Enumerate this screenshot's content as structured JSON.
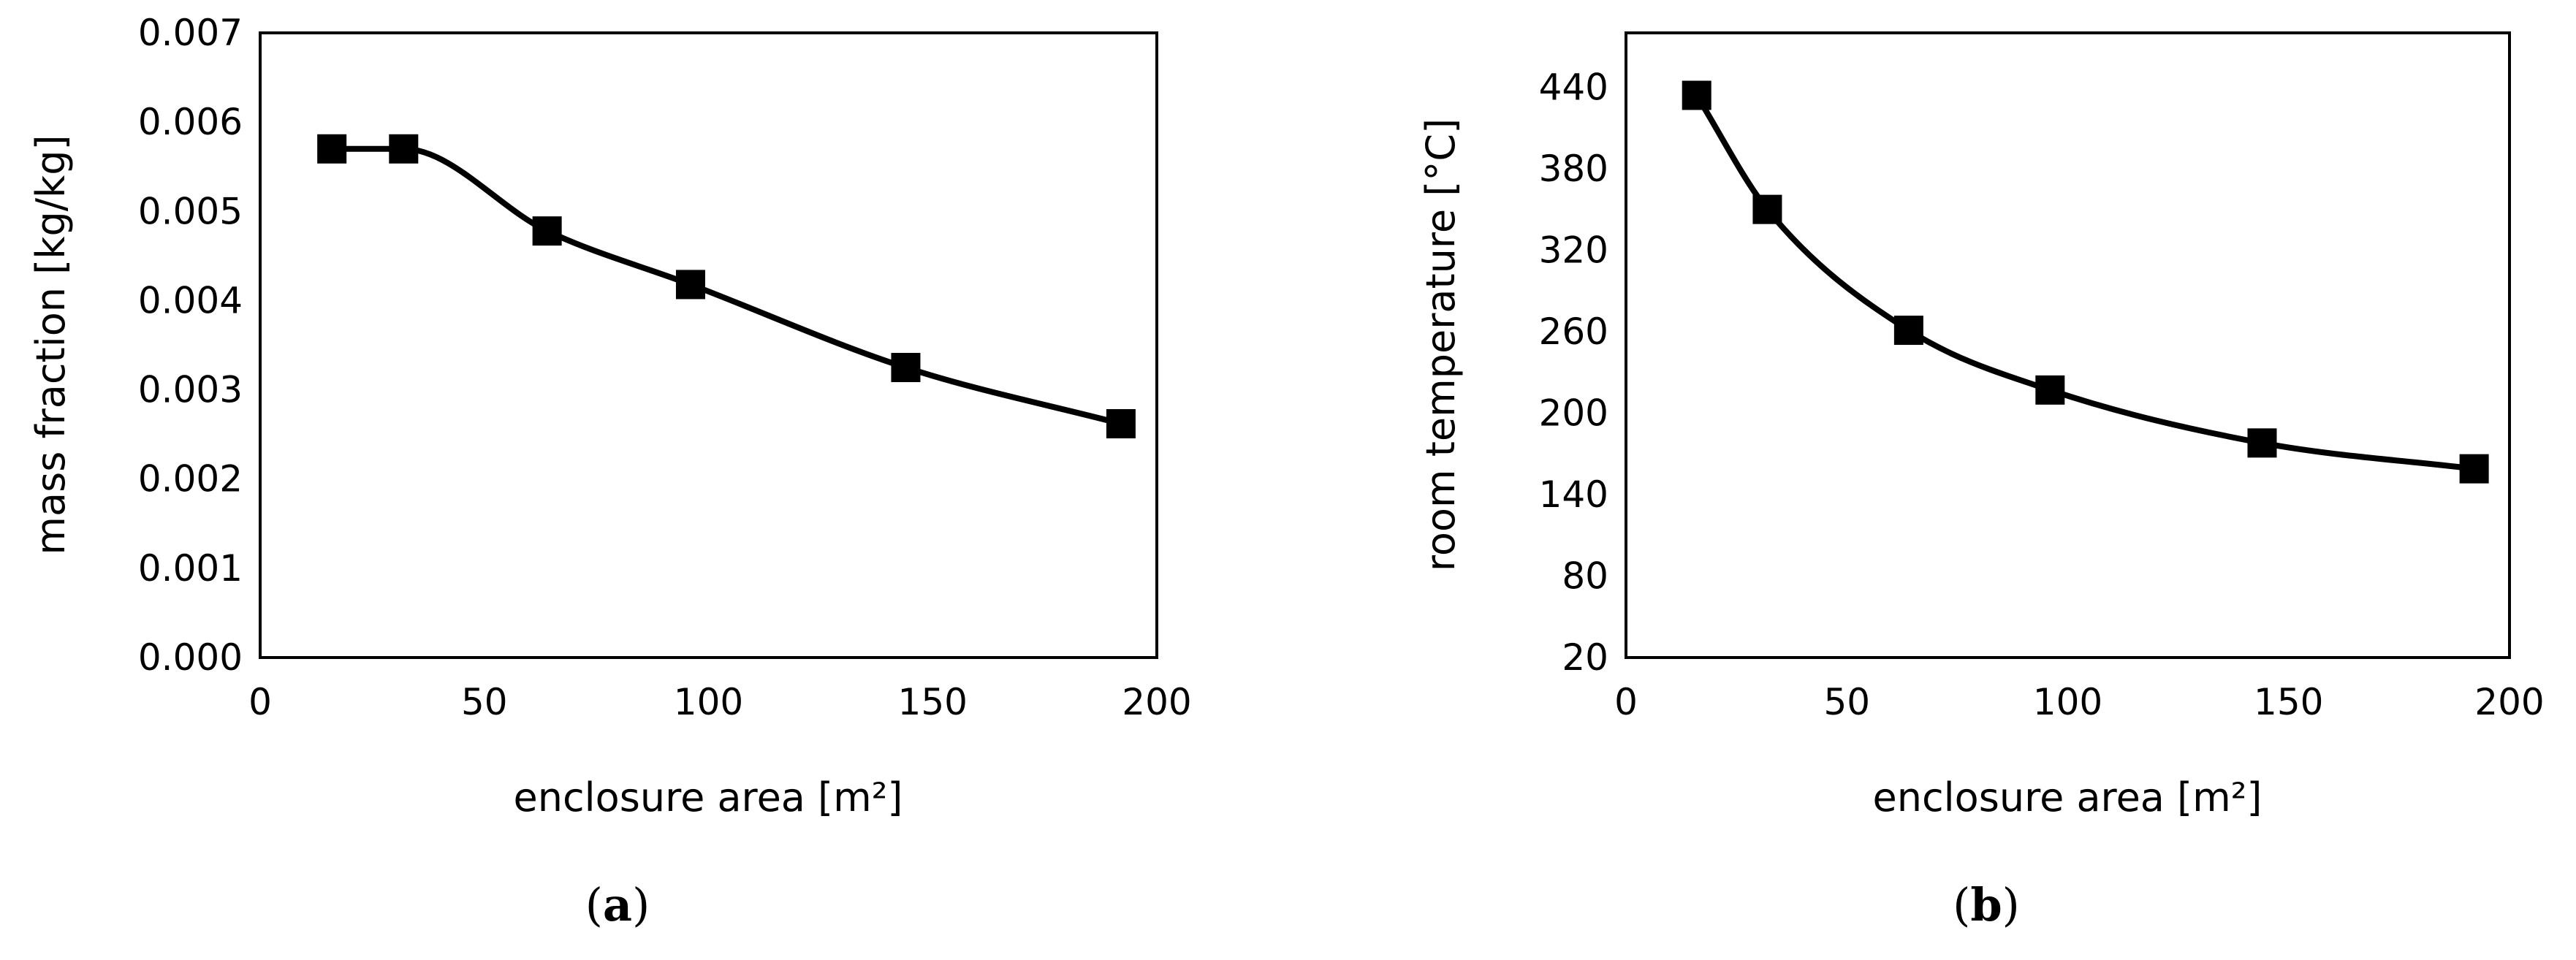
{
  "chart_data": [
    {
      "type": "line",
      "panel_label": "a",
      "xlabel": "enclosure area [m²]",
      "ylabel": "mass fraction [kg/kg]",
      "xlim": [
        0,
        200
      ],
      "ylim": [
        0.0,
        0.007
      ],
      "xticks": [
        0,
        50,
        100,
        150,
        200
      ],
      "yticks": [
        0.0,
        0.001,
        0.002,
        0.003,
        0.004,
        0.005,
        0.006,
        0.007
      ],
      "xtick_labels": [
        "0",
        "50",
        "100",
        "150",
        "200"
      ],
      "ytick_labels": [
        "0.000",
        "0.001",
        "0.002",
        "0.003",
        "0.004",
        "0.005",
        "0.006",
        "0.007"
      ],
      "grid": false,
      "marker": "square",
      "series": [
        {
          "x": [
            16,
            32,
            64,
            96,
            144,
            192
          ],
          "y": [
            0.0057,
            0.0057,
            0.00478,
            0.00418,
            0.00325,
            0.00262
          ]
        }
      ]
    },
    {
      "type": "line",
      "panel_label": "b",
      "xlabel": "enclosure area [m²]",
      "ylabel": "room temperature [°C]",
      "xlim": [
        0,
        200
      ],
      "ylim": [
        20,
        480
      ],
      "xticks": [
        0,
        50,
        100,
        150,
        200
      ],
      "yticks": [
        20,
        80,
        140,
        200,
        260,
        320,
        380,
        440
      ],
      "xtick_labels": [
        "0",
        "50",
        "100",
        "150",
        "200"
      ],
      "ytick_labels": [
        "20",
        "80",
        "140",
        "200",
        "260",
        "320",
        "380",
        "440"
      ],
      "grid": false,
      "marker": "square",
      "series": [
        {
          "x": [
            16,
            32,
            64,
            96,
            144,
            192
          ],
          "y": [
            434,
            350,
            261,
            217,
            178,
            159
          ]
        }
      ]
    }
  ]
}
